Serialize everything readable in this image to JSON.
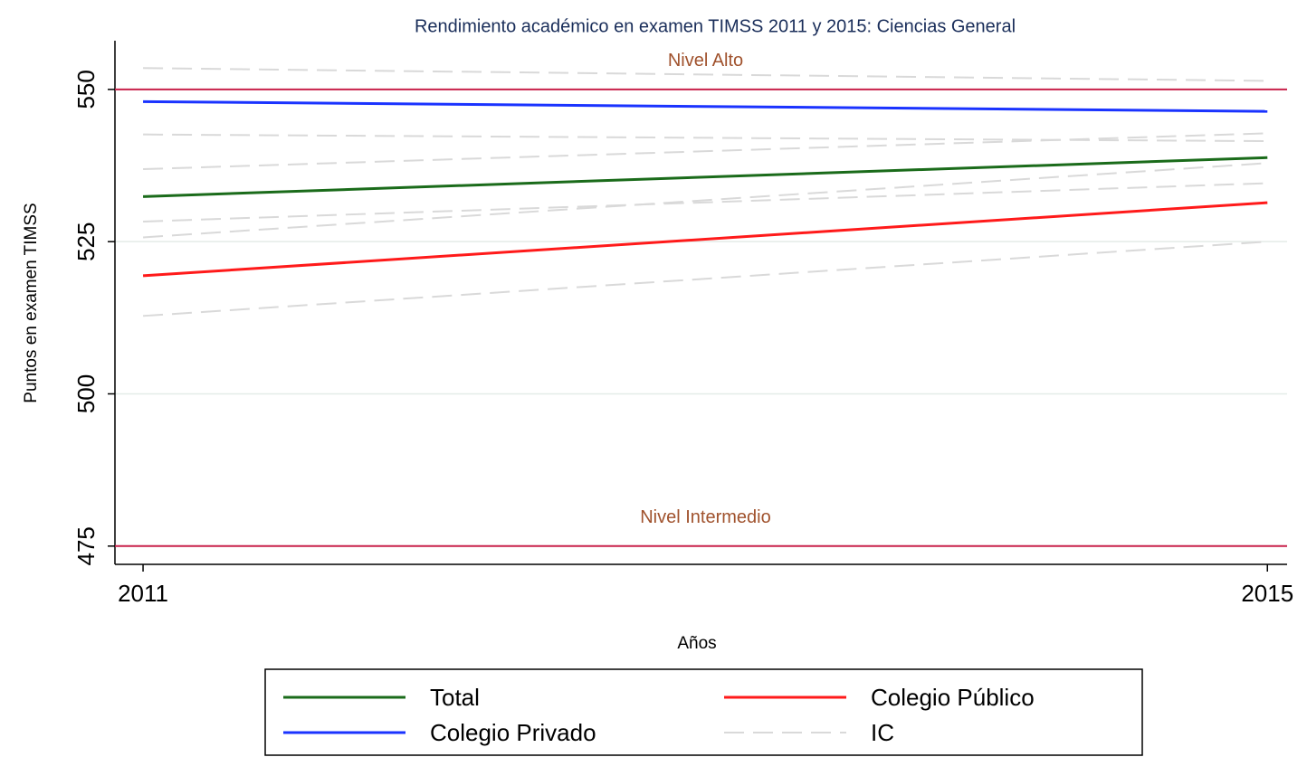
{
  "chart_data": {
    "type": "line",
    "title": "Rendimiento académico en examen TIMSS 2011 y 2015: Ciencias General",
    "xlabel": "Años",
    "ylabel": "Puntos en examen TIMSS",
    "x": [
      2011,
      2015
    ],
    "xlim": [
      2010.9,
      2015.07
    ],
    "xticks": [
      2011,
      2015
    ],
    "ylim": [
      472,
      558
    ],
    "yticks": [
      475,
      500,
      525,
      550
    ],
    "grid": true,
    "series": [
      {
        "name": "Total",
        "color": "#1a6b1a",
        "values": [
          532.4,
          538.8
        ]
      },
      {
        "name": "Colegio Público",
        "color": "#ff1a1a",
        "values": [
          519.4,
          531.4
        ]
      },
      {
        "name": "Colegio Privado",
        "color": "#1a33ff",
        "values": [
          548.0,
          546.4
        ]
      },
      {
        "name": "IC",
        "color": "#d9d9d9",
        "dashed": true,
        "lines": [
          [
            553.5,
            551.4
          ],
          [
            542.6,
            541.5
          ],
          [
            536.9,
            542.8
          ],
          [
            528.3,
            534.6
          ],
          [
            525.7,
            537.9
          ],
          [
            512.8,
            525.0
          ]
        ]
      }
    ],
    "reference_lines": [
      {
        "value": 550,
        "label": "Nivel Alto",
        "color": "#c8204a"
      },
      {
        "value": 475,
        "label": "Nivel Intermedio",
        "color": "#c8204a"
      }
    ]
  }
}
